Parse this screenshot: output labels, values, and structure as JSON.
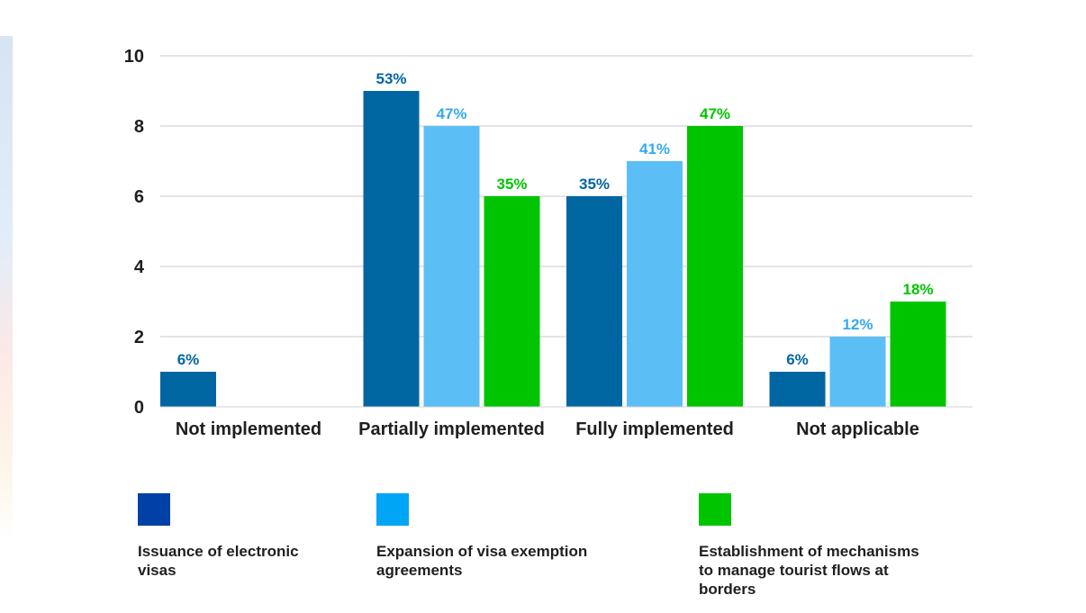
{
  "chart_data": {
    "type": "bar",
    "categories": [
      "Not implemented",
      "Partially implemented",
      "Fully implemented",
      "Not applicable"
    ],
    "series": [
      {
        "name": "Issuance of electronic visas",
        "values": [
          1,
          9,
          6,
          1
        ],
        "labels": [
          "6%",
          "53%",
          "35%",
          "6%"
        ],
        "color": "#0066a1",
        "label_color": "#0066a1",
        "legend_color": "#0041a8"
      },
      {
        "name": "Expansion of visa exemption agreements",
        "values": [
          0,
          8,
          7,
          2
        ],
        "labels": [
          "",
          "47%",
          "41%",
          "12%"
        ],
        "color": "#5bbff5",
        "label_color": "#33aaf0",
        "legend_color": "#00a5f5"
      },
      {
        "name": "Establishment of mechanisms to manage tourist flows at borders",
        "values": [
          0,
          6,
          8,
          3
        ],
        "labels": [
          "",
          "35%",
          "47%",
          "18%"
        ],
        "color": "#00c400",
        "label_color": "#00c400",
        "legend_color": "#00c400"
      }
    ],
    "ylim": [
      0,
      10
    ],
    "yticks": [
      0,
      2,
      4,
      6,
      8,
      10
    ],
    "grid": true,
    "legend_position": "bottom",
    "title": "",
    "xlabel": "",
    "ylabel": ""
  },
  "legend": {
    "items": [
      {
        "line1": "Issuance of electronic",
        "line2": "visas",
        "line3": ""
      },
      {
        "line1": "Expansion of visa exemption",
        "line2": "agreements",
        "line3": ""
      },
      {
        "line1": "Establishment of mechanisms",
        "line2": "to manage tourist flows at",
        "line3": "borders"
      }
    ]
  },
  "colors": {
    "grid": "#c8c8c8",
    "axis_text": "#1f1f1f",
    "legend_swatch_1": "#0041a8",
    "legend_swatch_2": "#00a5f5",
    "legend_swatch_3": "#00c400"
  }
}
